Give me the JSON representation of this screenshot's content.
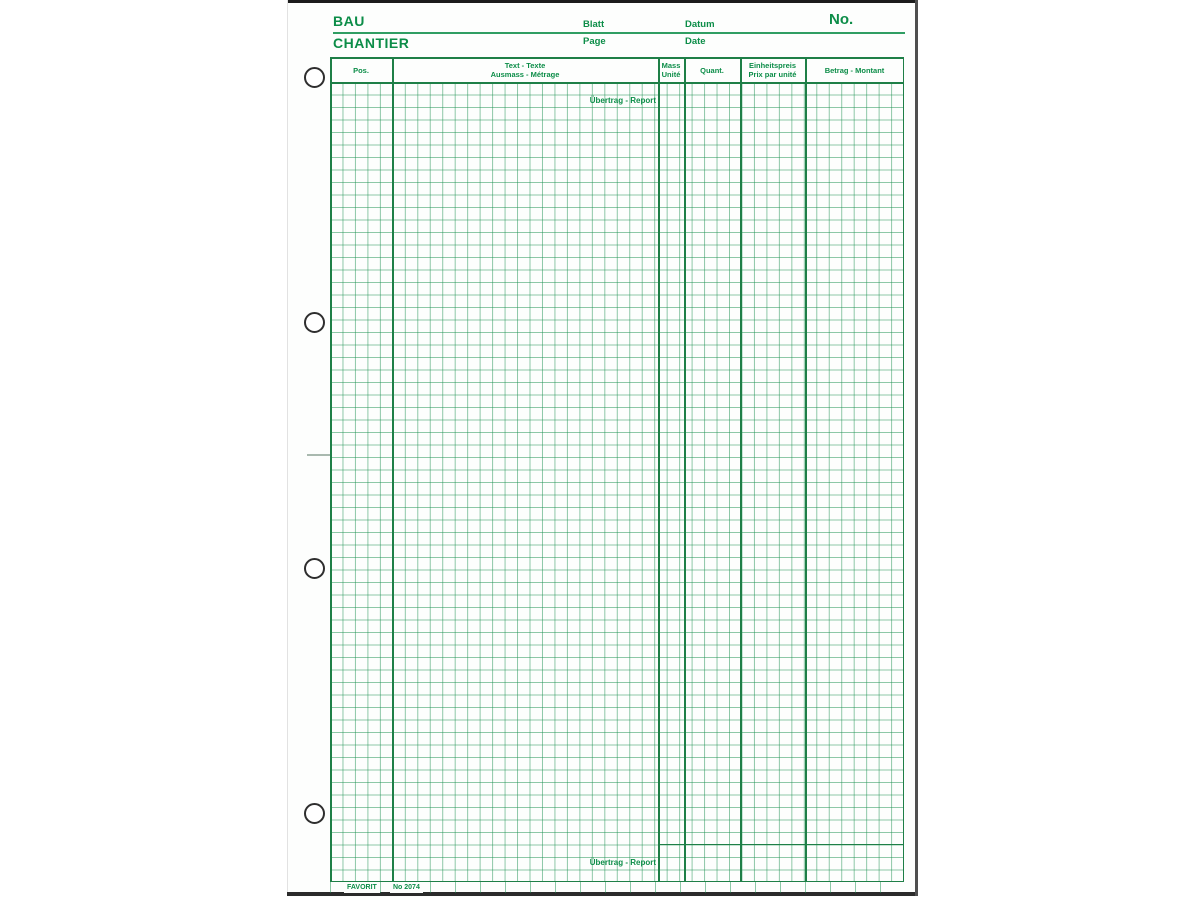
{
  "colors": {
    "ink_green": "#0c8d48",
    "grid_heavy_green": "#1e7f47",
    "grid_thin_green": "#2f9659"
  },
  "header": {
    "title_de": "BAU",
    "title_fr": "CHANTIER",
    "sheet_label_de": "Blatt",
    "sheet_label_fr": "Page",
    "date_label_de": "Datum",
    "date_label_fr": "Date",
    "number_label": "No."
  },
  "table": {
    "columns": {
      "pos": "Pos.",
      "text_de": "Text - Texte",
      "text_fr": "Ausmass - Métrage",
      "unit_de": "Mass",
      "unit_fr": "Unité",
      "quantity": "Quant.",
      "unit_price_de": "Einheitspreis",
      "unit_price_fr": "Prix par unité",
      "amount": "Betrag - Montant"
    },
    "carry_forward_top": "Übertrag - Report",
    "carry_forward_bottom": "Übertrag - Report"
  },
  "footer": {
    "brand": "FAVORIT",
    "form_number": "No 2074"
  }
}
